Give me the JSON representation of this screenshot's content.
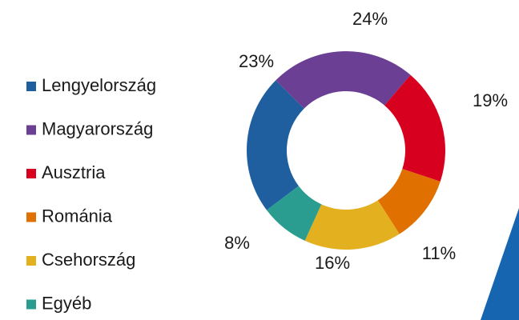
{
  "chart_data": {
    "type": "donut",
    "categories": [
      "Lengyelország",
      "Magyarország",
      "Ausztria",
      "Románia",
      "Csehország",
      "Egyéb"
    ],
    "values": [
      23,
      24,
      19,
      11,
      16,
      8
    ],
    "value_labels": [
      "23%",
      "24%",
      "19%",
      "11%",
      "16%",
      "8%"
    ],
    "colors": [
      "#1f5fa0",
      "#6b3f94",
      "#d8001f",
      "#e07000",
      "#e3b020",
      "#2a9d90"
    ],
    "legend": "left"
  }
}
